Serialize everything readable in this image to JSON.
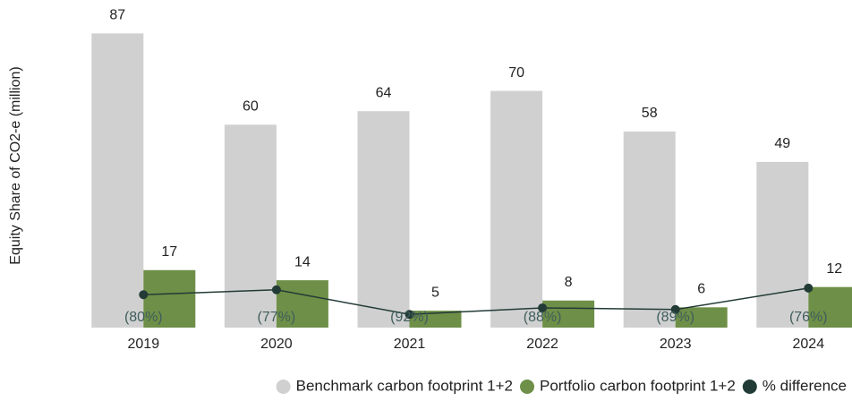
{
  "chart_data": {
    "type": "bar",
    "y_label": "Equity Share of CO2-e (million)",
    "categories": [
      "2019",
      "2020",
      "2021",
      "2022",
      "2023",
      "2024"
    ],
    "ylim": [
      0,
      90
    ],
    "y2lim": [
      -100,
      85
    ],
    "series": [
      {
        "name": "Benchmark carbon footprint 1+2",
        "color": "#d0d0d0",
        "values": [
          87,
          60,
          64,
          70,
          58,
          49
        ]
      },
      {
        "name": "Portfolio carbon footprint 1+2",
        "color": "#6e8f47",
        "values": [
          17,
          14,
          5,
          8,
          6,
          12
        ]
      },
      {
        "name": "% difference",
        "color": "#233b37",
        "type": "line",
        "axis": "y2",
        "values": [
          -80,
          -77,
          -92,
          -88,
          -89,
          -76
        ],
        "value_labels": [
          "(80%)",
          "(77%)",
          "(92%)",
          "(88%)",
          "(89%)",
          "(76%)"
        ]
      }
    ]
  }
}
